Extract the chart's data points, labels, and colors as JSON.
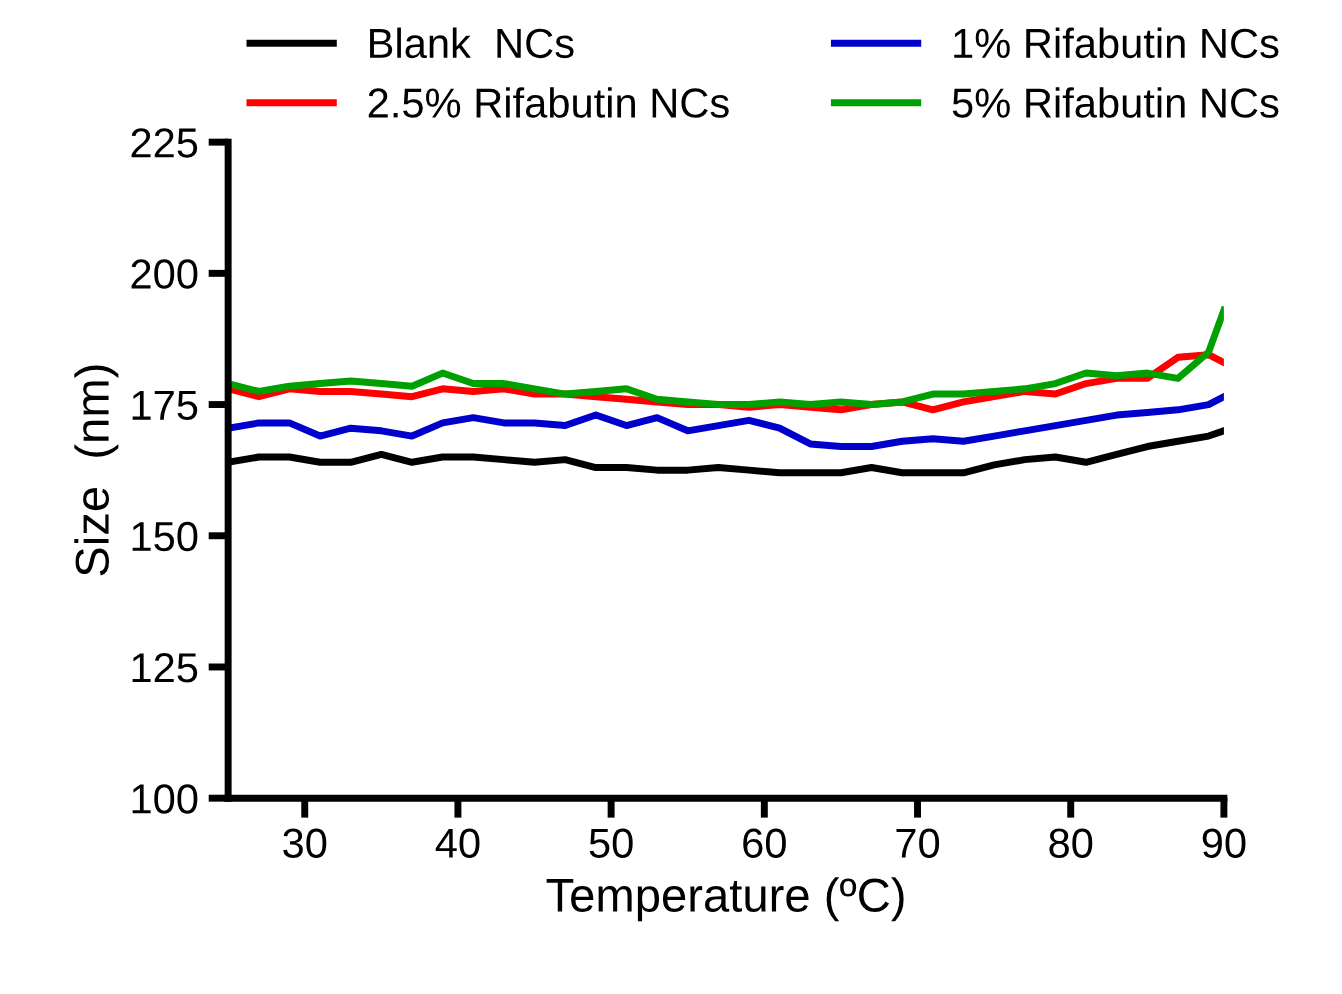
{
  "chart_data": {
    "type": "line",
    "xlabel": "Temperature (ºC)",
    "ylabel": "Size  (nm)",
    "x": [
      25,
      27,
      29,
      31,
      33,
      35,
      37,
      39,
      41,
      43,
      45,
      47,
      49,
      51,
      53,
      55,
      57,
      59,
      61,
      63,
      65,
      67,
      69,
      71,
      73,
      75,
      77,
      79,
      81,
      83,
      85,
      87,
      89,
      90
    ],
    "series": [
      {
        "name": "Blank  NCs",
        "color": "#000000",
        "values": [
          164,
          165,
          165,
          164,
          164,
          165.5,
          164,
          165,
          165,
          164.5,
          164,
          164.5,
          163,
          163,
          162.5,
          162.5,
          163,
          162.5,
          162,
          162,
          162,
          163,
          162,
          162,
          162,
          163.5,
          164.5,
          165,
          164,
          165.5,
          167,
          168,
          169,
          170
        ]
      },
      {
        "name": "2.5% Rifabutin NCs",
        "color": "#ff0000",
        "values": [
          178,
          176.5,
          178,
          177.5,
          177.5,
          177,
          176.5,
          178,
          177.5,
          178,
          177,
          177,
          176.5,
          176,
          175.5,
          175,
          175,
          174.5,
          175,
          174.5,
          174,
          175,
          175.5,
          174,
          175.5,
          176.5,
          177.5,
          177,
          179,
          180,
          180,
          184,
          184.5,
          183
        ]
      },
      {
        "name": "1% Rifabutin NCs",
        "color": "#0000cc",
        "values": [
          170.5,
          171.5,
          171.5,
          169,
          170.5,
          170,
          169,
          171.5,
          172.5,
          171.5,
          171.5,
          171,
          173,
          171,
          172.5,
          170,
          171,
          172,
          170.5,
          167.5,
          167,
          167,
          168,
          168.5,
          168,
          169,
          170,
          171,
          172,
          173,
          173.5,
          174,
          175,
          176.5
        ]
      },
      {
        "name": "5% Rifabutin NCs",
        "color": "#00a000",
        "values": [
          179,
          177.5,
          178.5,
          179,
          179.5,
          179,
          178.5,
          181,
          179,
          179,
          178,
          177,
          177.5,
          178,
          176,
          175.5,
          175,
          175,
          175.5,
          175,
          175.5,
          175,
          175.5,
          177,
          177,
          177.5,
          178,
          179,
          181,
          180.5,
          181,
          180,
          185,
          193
        ]
      }
    ],
    "xlim": [
      25,
      90
    ],
    "xticks": [
      30,
      40,
      50,
      60,
      70,
      80,
      90
    ],
    "ylim": [
      100,
      225
    ],
    "yticks": [
      100,
      125,
      150,
      175,
      200,
      225
    ],
    "grid": false,
    "legend": "top",
    "marker": "none",
    "line_style": "solid"
  }
}
